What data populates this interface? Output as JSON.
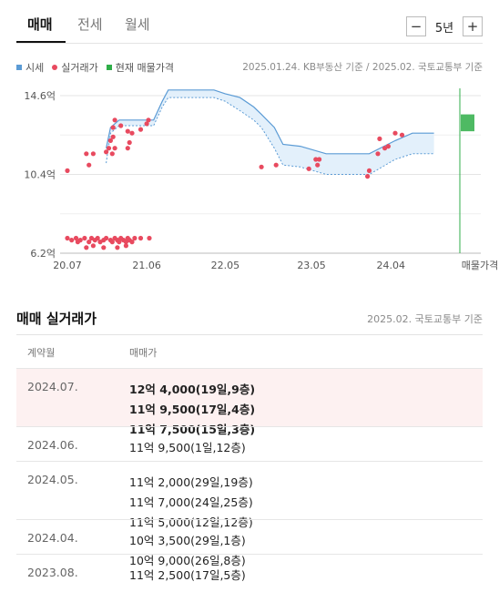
{
  "tabs": [
    {
      "label": "매매",
      "active": true
    },
    {
      "label": "전세",
      "active": false
    },
    {
      "label": "월세",
      "active": false
    }
  ],
  "period": {
    "minus": "−",
    "label": "5년",
    "plus": "+"
  },
  "legend": {
    "items": [
      {
        "label": "시세",
        "color": "#5b9bd5"
      },
      {
        "label": "실거래가",
        "color": "#e84a5f"
      },
      {
        "label": "현재 매물가격",
        "color": "#2fae48"
      }
    ],
    "source": "2025.01.24. KB부동산 기준 / 2025.02. 국토교통부 기준"
  },
  "chart_data": {
    "type": "line",
    "y_ticks": [
      "14.6억",
      "10.4억",
      "6.2억"
    ],
    "y_values": [
      14.6,
      10.4,
      6.2
    ],
    "x_ticks": [
      "20.07",
      "21.06",
      "22.05",
      "23.05",
      "24.04"
    ],
    "x_tick_values": [
      2020.5,
      2021.42,
      2022.33,
      2023.33,
      2024.25
    ],
    "x_extra_label": "매물가격",
    "ylim": [
      6.2,
      14.6
    ],
    "xlim": [
      2020.5,
      2025.05
    ],
    "grid": true,
    "series": [
      {
        "name": "시세",
        "upper": [
          [
            2020.5,
            null
          ],
          [
            2020.95,
            11.8
          ],
          [
            2021.0,
            12.9
          ],
          [
            2021.1,
            13.3
          ],
          [
            2021.5,
            13.3
          ],
          [
            2021.6,
            14.3
          ],
          [
            2021.67,
            14.9
          ],
          [
            2022.2,
            14.9
          ],
          [
            2022.33,
            14.7
          ],
          [
            2022.5,
            14.5
          ],
          [
            2022.66,
            14.0
          ],
          [
            2022.75,
            13.6
          ],
          [
            2022.9,
            12.9
          ],
          [
            2023.0,
            12.0
          ],
          [
            2023.2,
            11.9
          ],
          [
            2023.5,
            11.5
          ],
          [
            2024.0,
            11.5
          ],
          [
            2024.3,
            12.2
          ],
          [
            2024.5,
            12.6
          ],
          [
            2024.75,
            12.6
          ]
        ],
        "lower": [
          [
            2020.95,
            11.0
          ],
          [
            2021.0,
            12.6
          ],
          [
            2021.1,
            13.0
          ],
          [
            2021.5,
            13.0
          ],
          [
            2021.6,
            14.0
          ],
          [
            2021.67,
            14.5
          ],
          [
            2022.2,
            14.5
          ],
          [
            2022.33,
            14.3
          ],
          [
            2022.5,
            13.8
          ],
          [
            2022.66,
            13.3
          ],
          [
            2022.75,
            12.9
          ],
          [
            2022.9,
            11.8
          ],
          [
            2023.0,
            10.9
          ],
          [
            2023.2,
            10.8
          ],
          [
            2023.5,
            10.4
          ],
          [
            2024.0,
            10.4
          ],
          [
            2024.3,
            11.2
          ],
          [
            2024.5,
            11.5
          ],
          [
            2024.75,
            11.5
          ]
        ]
      },
      {
        "name": "실거래가",
        "points": [
          [
            2020.5,
            10.6
          ],
          [
            2020.72,
            11.5
          ],
          [
            2020.8,
            11.5
          ],
          [
            2020.75,
            10.9
          ],
          [
            2020.95,
            11.6
          ],
          [
            2020.98,
            11.8
          ],
          [
            2021.0,
            12.2
          ],
          [
            2021.03,
            12.4
          ],
          [
            2021.02,
            11.5
          ],
          [
            2021.05,
            11.8
          ],
          [
            2021.03,
            12.9
          ],
          [
            2021.05,
            13.3
          ],
          [
            2021.12,
            13.0
          ],
          [
            2021.22,
            12.1
          ],
          [
            2021.2,
            11.8
          ],
          [
            2021.2,
            12.7
          ],
          [
            2021.25,
            12.6
          ],
          [
            2021.35,
            12.8
          ],
          [
            2021.42,
            13.1
          ],
          [
            2021.44,
            13.3
          ],
          [
            2022.75,
            10.8
          ],
          [
            2022.92,
            10.9
          ],
          [
            2023.3,
            10.7
          ],
          [
            2023.38,
            11.2
          ],
          [
            2023.42,
            11.2
          ],
          [
            2023.4,
            10.9
          ],
          [
            2023.98,
            10.3
          ],
          [
            2024.0,
            10.6
          ],
          [
            2024.1,
            11.5
          ],
          [
            2024.12,
            12.3
          ],
          [
            2024.18,
            11.8
          ],
          [
            2024.22,
            11.9
          ],
          [
            2024.3,
            12.6
          ],
          [
            2024.38,
            12.5
          ],
          [
            2020.5,
            7.0
          ],
          [
            2020.55,
            6.9
          ],
          [
            2020.6,
            7.0
          ],
          [
            2020.62,
            6.8
          ],
          [
            2020.65,
            6.9
          ],
          [
            2020.7,
            7.0
          ],
          [
            2020.75,
            6.8
          ],
          [
            2020.78,
            7.0
          ],
          [
            2020.82,
            6.9
          ],
          [
            2020.85,
            7.0
          ],
          [
            2020.88,
            6.8
          ],
          [
            2020.92,
            6.9
          ],
          [
            2020.95,
            7.0
          ],
          [
            2021.0,
            6.9
          ],
          [
            2021.02,
            6.8
          ],
          [
            2021.05,
            7.0
          ],
          [
            2021.08,
            6.9
          ],
          [
            2021.1,
            6.8
          ],
          [
            2021.12,
            7.0
          ],
          [
            2021.15,
            6.9
          ],
          [
            2021.18,
            6.8
          ],
          [
            2021.2,
            7.0
          ],
          [
            2021.22,
            6.9
          ],
          [
            2021.25,
            6.8
          ],
          [
            2021.28,
            7.0
          ],
          [
            2021.35,
            7.0
          ],
          [
            2021.45,
            7.0
          ],
          [
            2020.72,
            6.5
          ],
          [
            2020.8,
            6.6
          ],
          [
            2020.92,
            6.5
          ],
          [
            2021.08,
            6.5
          ],
          [
            2021.18,
            6.6
          ]
        ]
      },
      {
        "name": "현재 매물가격",
        "range": [
          12.7,
          13.6
        ]
      }
    ]
  },
  "trades": {
    "title": "매매 실거래가",
    "source": "2025.02. 국토교통부 기준",
    "col_month": "계약월",
    "col_price": "매매가",
    "rows": [
      {
        "month": "2024.07.",
        "deals": [
          "12억 4,000(19일,9층)",
          "11억 9,500(17일,4층)",
          "11억 7,500(15일,3층)"
        ],
        "highlight": true
      },
      {
        "month": "2024.06.",
        "deals": [
          "11억 9,500(1일,12층)"
        ],
        "highlight": false
      },
      {
        "month": "2024.05.",
        "deals": [
          "11억 2,000(29일,19층)",
          "11억 7,000(24일,25층)",
          "11억 5,000(12일,12층)"
        ],
        "highlight": false
      },
      {
        "month": "2024.04.",
        "deals": [
          "10억 3,500(29일,1층)",
          "10억 9,000(26일,8층)"
        ],
        "highlight": false
      },
      {
        "month": "2023.08.",
        "deals": [
          "11억 2,500(17일,5층)"
        ],
        "highlight": false
      }
    ]
  }
}
